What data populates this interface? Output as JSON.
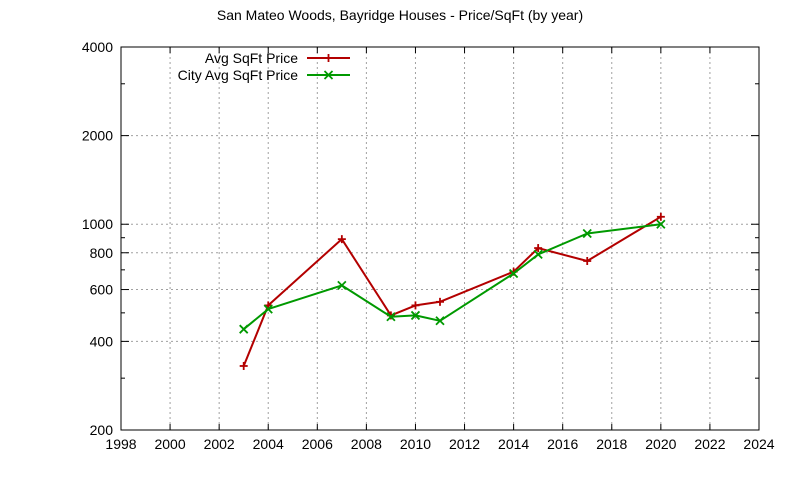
{
  "chart_data": {
    "type": "line",
    "title": "San Mateo Woods, Bayridge Houses - Price/SqFt (by year)",
    "xlabel": "",
    "ylabel": "",
    "xlim": [
      1998,
      2024
    ],
    "ylim": [
      200,
      4000
    ],
    "y_scale": "log",
    "x_ticks": [
      1998,
      2000,
      2002,
      2004,
      2006,
      2008,
      2010,
      2012,
      2014,
      2016,
      2018,
      2020,
      2022,
      2024
    ],
    "y_ticks": [
      200,
      400,
      600,
      800,
      1000,
      2000,
      4000
    ],
    "grid": true,
    "legend_position": "top-left",
    "series": [
      {
        "name": "Avg SqFt Price",
        "color": "#b30000",
        "marker": "plus",
        "x": [
          2003,
          2004,
          2007,
          2009,
          2010,
          2011,
          2014,
          2015,
          2017,
          2020
        ],
        "y": [
          330,
          530,
          890,
          490,
          530,
          545,
          690,
          830,
          750,
          1060
        ]
      },
      {
        "name": "City Avg SqFt Price",
        "color": "#009900",
        "marker": "cross",
        "x": [
          2003,
          2004,
          2007,
          2009,
          2010,
          2011,
          2014,
          2015,
          2017,
          2020
        ],
        "y": [
          440,
          515,
          620,
          485,
          490,
          470,
          680,
          790,
          930,
          1000
        ]
      }
    ]
  }
}
